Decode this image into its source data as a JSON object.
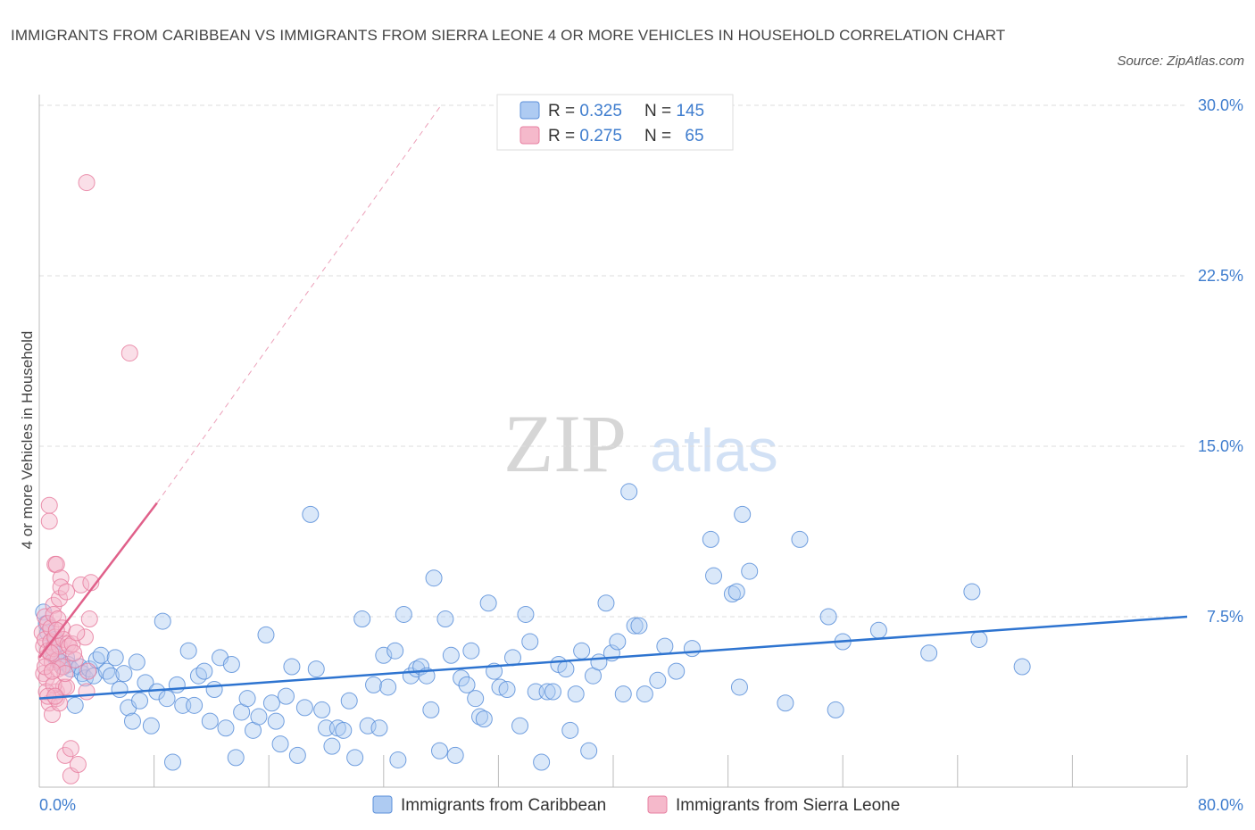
{
  "title": "IMMIGRANTS FROM CARIBBEAN VS IMMIGRANTS FROM SIERRA LEONE 4 OR MORE VEHICLES IN HOUSEHOLD CORRELATION CHART",
  "source": "Source: ZipAtlas.com",
  "watermark": {
    "zip": "ZIP",
    "atlas": "atlas"
  },
  "colors": {
    "blue": "#5b8fd9",
    "blue_fill": "#aecbf2",
    "blue_line": "#2e74d0",
    "pink": "#e77fa0",
    "pink_fill": "#f5b9cb",
    "pink_line": "#e0608a",
    "axis_text": "#3f7dce",
    "grid": "#dddddd"
  },
  "chart_data": {
    "type": "scatter",
    "ylabel": "4 or more Vehicles in Household",
    "xlim": [
      0,
      80
    ],
    "ylim": [
      0,
      30
    ],
    "x_tick_labels": [
      {
        "value": 0,
        "label": "0.0%"
      },
      {
        "value": 80,
        "label": "80.0%"
      }
    ],
    "y_tick_labels": [
      {
        "value": 7.5,
        "label": "7.5%"
      },
      {
        "value": 15,
        "label": "15.0%"
      },
      {
        "value": 22.5,
        "label": "22.5%"
      },
      {
        "value": 30,
        "label": "30.0%"
      }
    ],
    "legend_stats": [
      {
        "series": "Immigrants from Caribbean",
        "r_label": "R = ",
        "r": "0.325",
        "n_label": "N = ",
        "n": "145"
      },
      {
        "series": "Immigrants from Sierra Leone",
        "r_label": "R = ",
        "r": "0.275",
        "n_label": "N = ",
        "n": "65"
      }
    ],
    "series": [
      {
        "name": "Immigrants from Caribbean",
        "trend": {
          "x0": 0,
          "y0": 3.9,
          "x1": 80,
          "y1": 7.5
        },
        "points": [
          [
            0.3,
            7.7
          ],
          [
            0.5,
            7.2
          ],
          [
            0.6,
            6.8
          ],
          [
            0.8,
            6.4
          ],
          [
            0.9,
            6.0
          ],
          [
            1.0,
            5.8
          ],
          [
            1.1,
            6.5
          ],
          [
            1.2,
            5.6
          ],
          [
            1.5,
            5.5
          ],
          [
            1.7,
            5.3
          ],
          [
            1.9,
            5.7
          ],
          [
            2.0,
            5.4
          ],
          [
            2.2,
            5.2
          ],
          [
            2.5,
            3.6
          ],
          [
            2.8,
            5.3
          ],
          [
            3.0,
            5.0
          ],
          [
            3.2,
            4.8
          ],
          [
            3.5,
            5.2
          ],
          [
            3.8,
            4.9
          ],
          [
            4.0,
            5.6
          ],
          [
            4.3,
            5.8
          ],
          [
            4.7,
            5.1
          ],
          [
            5.0,
            4.9
          ],
          [
            5.3,
            5.7
          ],
          [
            5.6,
            4.3
          ],
          [
            5.9,
            5.0
          ],
          [
            6.2,
            3.5
          ],
          [
            6.5,
            2.9
          ],
          [
            6.8,
            5.5
          ],
          [
            7.0,
            3.8
          ],
          [
            7.4,
            4.6
          ],
          [
            7.8,
            2.7
          ],
          [
            8.2,
            4.2
          ],
          [
            8.6,
            7.3
          ],
          [
            8.9,
            3.9
          ],
          [
            9.3,
            1.1
          ],
          [
            9.6,
            4.5
          ],
          [
            10.0,
            3.6
          ],
          [
            10.4,
            6.0
          ],
          [
            10.8,
            3.6
          ],
          [
            11.1,
            4.9
          ],
          [
            11.5,
            5.1
          ],
          [
            11.9,
            2.9
          ],
          [
            12.2,
            4.3
          ],
          [
            12.6,
            5.7
          ],
          [
            13.0,
            2.6
          ],
          [
            13.4,
            5.4
          ],
          [
            13.7,
            1.3
          ],
          [
            14.1,
            3.3
          ],
          [
            14.5,
            3.9
          ],
          [
            14.9,
            2.5
          ],
          [
            15.3,
            3.1
          ],
          [
            15.8,
            6.7
          ],
          [
            16.2,
            3.7
          ],
          [
            16.5,
            2.9
          ],
          [
            16.8,
            1.9
          ],
          [
            17.2,
            4.0
          ],
          [
            17.6,
            5.3
          ],
          [
            18.0,
            1.4
          ],
          [
            18.5,
            3.5
          ],
          [
            18.9,
            12.0
          ],
          [
            19.3,
            5.2
          ],
          [
            19.7,
            3.4
          ],
          [
            20.0,
            2.6
          ],
          [
            20.4,
            1.8
          ],
          [
            20.8,
            2.6
          ],
          [
            21.2,
            2.5
          ],
          [
            21.6,
            3.8
          ],
          [
            22.0,
            1.3
          ],
          [
            22.5,
            7.4
          ],
          [
            22.9,
            2.7
          ],
          [
            23.3,
            4.5
          ],
          [
            23.7,
            2.6
          ],
          [
            24.0,
            5.8
          ],
          [
            24.3,
            4.4
          ],
          [
            24.8,
            6.0
          ],
          [
            25.0,
            1.2
          ],
          [
            25.4,
            7.6
          ],
          [
            25.9,
            4.9
          ],
          [
            26.3,
            5.2
          ],
          [
            26.6,
            5.3
          ],
          [
            27.0,
            4.9
          ],
          [
            27.3,
            3.4
          ],
          [
            27.5,
            9.2
          ],
          [
            27.9,
            1.6
          ],
          [
            28.3,
            7.4
          ],
          [
            28.7,
            5.8
          ],
          [
            29.0,
            1.4
          ],
          [
            29.4,
            4.8
          ],
          [
            29.8,
            4.5
          ],
          [
            30.1,
            6.0
          ],
          [
            30.4,
            3.9
          ],
          [
            30.7,
            3.1
          ],
          [
            31.0,
            3.0
          ],
          [
            31.3,
            8.1
          ],
          [
            31.7,
            5.1
          ],
          [
            32.1,
            4.4
          ],
          [
            32.6,
            4.3
          ],
          [
            33.0,
            5.7
          ],
          [
            33.5,
            2.7
          ],
          [
            33.9,
            7.6
          ],
          [
            34.2,
            6.4
          ],
          [
            34.6,
            4.2
          ],
          [
            35.0,
            1.1
          ],
          [
            35.4,
            4.2
          ],
          [
            35.8,
            4.2
          ],
          [
            36.2,
            5.4
          ],
          [
            36.7,
            5.2
          ],
          [
            37.0,
            2.5
          ],
          [
            37.4,
            4.1
          ],
          [
            37.8,
            6.0
          ],
          [
            38.3,
            1.6
          ],
          [
            38.6,
            4.9
          ],
          [
            39.0,
            5.5
          ],
          [
            39.5,
            8.1
          ],
          [
            39.9,
            5.9
          ],
          [
            40.3,
            6.4
          ],
          [
            40.7,
            4.1
          ],
          [
            41.1,
            13.0
          ],
          [
            41.5,
            7.1
          ],
          [
            41.8,
            7.1
          ],
          [
            42.2,
            4.1
          ],
          [
            43.1,
            4.7
          ],
          [
            43.6,
            6.2
          ],
          [
            44.4,
            5.1
          ],
          [
            45.5,
            6.1
          ],
          [
            46.8,
            10.9
          ],
          [
            47.0,
            9.3
          ],
          [
            48.3,
            8.5
          ],
          [
            48.6,
            8.6
          ],
          [
            48.8,
            4.4
          ],
          [
            49.0,
            12.0
          ],
          [
            49.5,
            9.5
          ],
          [
            52.0,
            3.7
          ],
          [
            53.0,
            10.9
          ],
          [
            55.0,
            7.5
          ],
          [
            55.5,
            3.4
          ],
          [
            56.0,
            6.4
          ],
          [
            58.5,
            6.9
          ],
          [
            62.0,
            5.9
          ],
          [
            65.0,
            8.6
          ],
          [
            65.5,
            6.5
          ],
          [
            68.5,
            5.3
          ]
        ]
      },
      {
        "name": "Immigrants from Sierra Leone",
        "trend": {
          "x0": 0,
          "y0": 5.7,
          "x1": 8.2,
          "y1": 12.5,
          "ext_x1": 28,
          "ext_y1": 30.0
        },
        "points": [
          [
            0.2,
            6.8
          ],
          [
            0.3,
            6.2
          ],
          [
            0.3,
            5.0
          ],
          [
            0.4,
            7.5
          ],
          [
            0.4,
            6.5
          ],
          [
            0.5,
            5.7
          ],
          [
            0.5,
            4.8
          ],
          [
            0.6,
            7.2
          ],
          [
            0.6,
            6.0
          ],
          [
            0.7,
            12.4
          ],
          [
            0.7,
            11.7
          ],
          [
            0.7,
            3.7
          ],
          [
            0.8,
            7.0
          ],
          [
            0.8,
            6.4
          ],
          [
            0.9,
            5.5
          ],
          [
            0.9,
            3.2
          ],
          [
            1.0,
            8.0
          ],
          [
            1.0,
            7.6
          ],
          [
            1.0,
            6.1
          ],
          [
            1.1,
            9.8
          ],
          [
            1.1,
            6.6
          ],
          [
            1.2,
            9.8
          ],
          [
            1.2,
            4.2
          ],
          [
            1.2,
            3.9
          ],
          [
            1.3,
            7.4
          ],
          [
            1.3,
            5.6
          ],
          [
            1.3,
            5.2
          ],
          [
            1.4,
            8.3
          ],
          [
            1.4,
            6.2
          ],
          [
            1.5,
            9.2
          ],
          [
            1.5,
            8.8
          ],
          [
            1.6,
            7.0
          ],
          [
            1.7,
            6.5
          ],
          [
            1.7,
            4.4
          ],
          [
            1.8,
            1.4
          ],
          [
            1.9,
            8.6
          ],
          [
            2.0,
            6.3
          ],
          [
            2.1,
            6.2
          ],
          [
            2.2,
            0.5
          ],
          [
            2.2,
            1.7
          ],
          [
            2.3,
            6.3
          ],
          [
            2.5,
            5.6
          ],
          [
            2.7,
            1.0
          ],
          [
            2.9,
            8.9
          ],
          [
            3.2,
            6.6
          ],
          [
            3.3,
            4.2
          ],
          [
            3.3,
            26.6
          ],
          [
            3.4,
            5.1
          ],
          [
            3.5,
            7.4
          ],
          [
            3.6,
            9.0
          ],
          [
            6.3,
            19.1
          ],
          [
            0.5,
            4.2
          ],
          [
            1.0,
            4.5
          ],
          [
            1.6,
            5.3
          ],
          [
            0.8,
            5.9
          ],
          [
            1.9,
            4.4
          ],
          [
            0.4,
            5.3
          ],
          [
            1.2,
            6.9
          ],
          [
            2.4,
            5.9
          ],
          [
            0.6,
            4.0
          ],
          [
            1.8,
            5.0
          ],
          [
            1.4,
            3.7
          ],
          [
            2.6,
            6.8
          ],
          [
            0.9,
            5.1
          ],
          [
            1.1,
            4.0
          ]
        ]
      }
    ]
  }
}
